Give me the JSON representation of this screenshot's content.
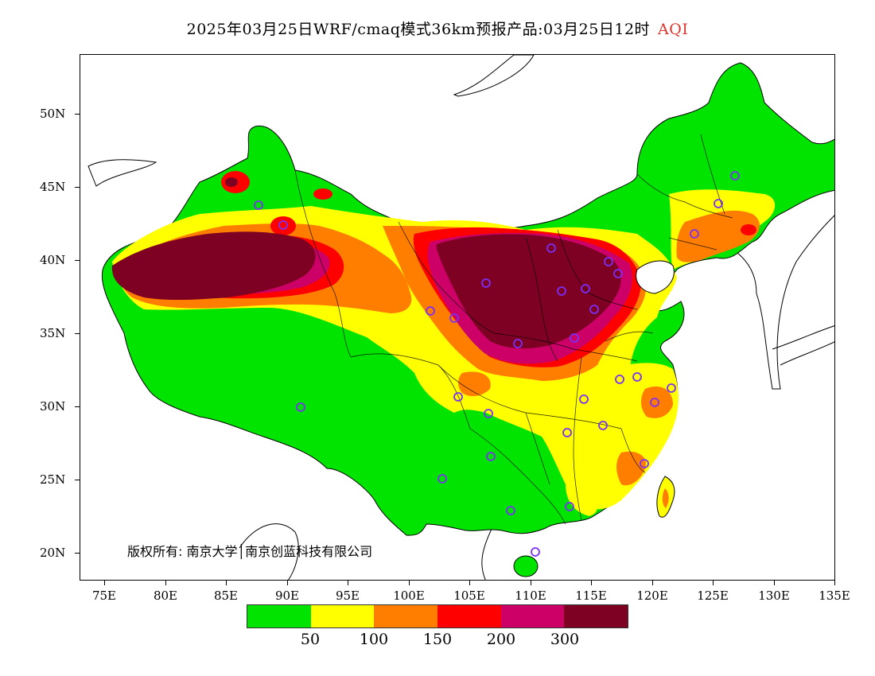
{
  "title": {
    "main": "2025年03月25日WRF/cmaq模式36km预报产品:03月25日12时",
    "variable": "AQI",
    "variable_color": "#e0342c"
  },
  "axes": {
    "lat_labels": [
      "50N",
      "45N",
      "40N",
      "35N",
      "30N",
      "25N",
      "20N"
    ],
    "lon_labels": [
      "75E",
      "80E",
      "85E",
      "90E",
      "95E",
      "100E",
      "105E",
      "110E",
      "115E",
      "120E",
      "125E",
      "130E",
      "135E"
    ]
  },
  "copyright": "版权所有: 南京大学│南京创蓝科技有限公司",
  "legend": {
    "colors": [
      "#00e400",
      "#ffff00",
      "#ff7e00",
      "#ff0000",
      "#cc0066",
      "#7e0023"
    ],
    "labels": [
      "50",
      "100",
      "150",
      "200",
      "300"
    ]
  },
  "station_marker_color": "#7b2ff7"
}
